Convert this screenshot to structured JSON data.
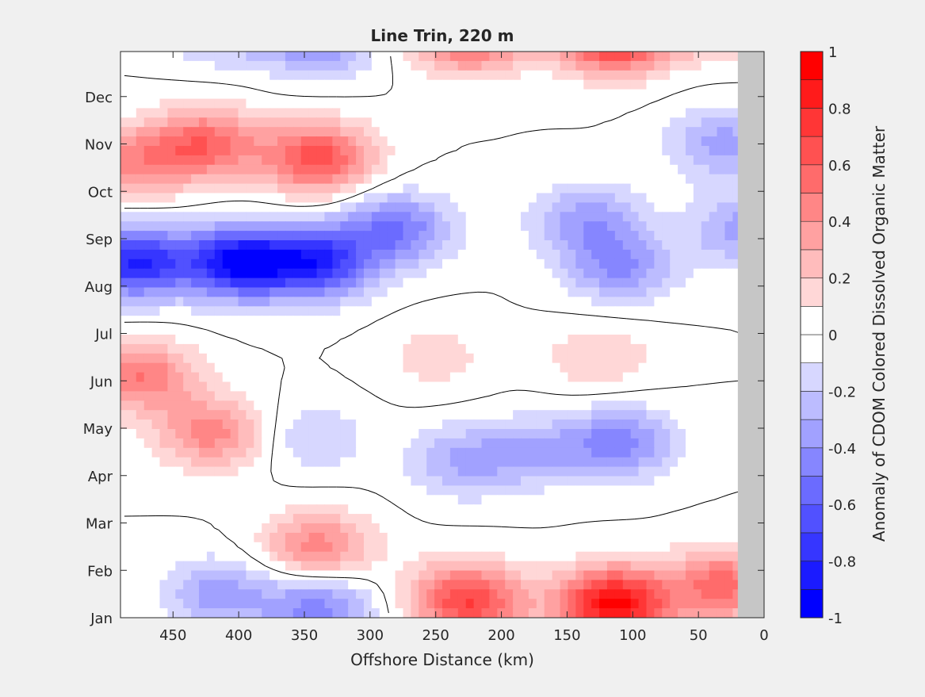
{
  "chart_data": {
    "type": "heatmap",
    "title": "Line Trin, 220 m",
    "xlabel": "Offshore Distance (km)",
    "ylabel": "",
    "xlim": [
      490,
      0
    ],
    "x_reversed": true,
    "x_ticks": [
      450,
      400,
      350,
      300,
      250,
      200,
      150,
      100,
      50,
      0
    ],
    "y_ticks": [
      "Jan",
      "Feb",
      "Mar",
      "Apr",
      "May",
      "Jun",
      "Jul",
      "Aug",
      "Sep",
      "Oct",
      "Nov",
      "Dec"
    ],
    "no_data_region_km": [
      0,
      20
    ],
    "no_data_color": "#c6c6c6",
    "contour_line_level": 0,
    "colorbar": {
      "label": "Anomaly of CDOM Colored Dissolved Organic Matter",
      "clim": [
        -1,
        1
      ],
      "levels": 20,
      "tick_values": [
        1,
        0.8,
        0.6,
        0.4,
        0.2,
        0,
        -0.2,
        -0.4,
        -0.6,
        -0.8,
        -1
      ],
      "tick_labels": [
        "1",
        "0.8",
        "0.6",
        "0.4",
        "0.2",
        "0",
        "-0.2",
        "-0.4",
        "-0.6",
        "-0.8",
        "-1"
      ],
      "colormap": "blue-white-red",
      "color_low": "#0000ff",
      "color_mid": "#ffffff",
      "color_high": "#ff0000"
    },
    "anomaly_features": [
      {
        "km": 400,
        "month": 8.0,
        "value": -0.9
      },
      {
        "km": 480,
        "month": 8.0,
        "value": -0.8
      },
      {
        "km": 340,
        "month": 8.0,
        "value": -0.75
      },
      {
        "km": 280,
        "month": 8.7,
        "value": -0.5
      },
      {
        "km": 110,
        "month": 7.9,
        "value": -0.4
      },
      {
        "km": 135,
        "month": 8.9,
        "value": -0.35
      },
      {
        "km": 15,
        "month": 8.7,
        "value": -0.35
      },
      {
        "km": 30,
        "month": 10.5,
        "value": -0.35
      },
      {
        "km": 340,
        "month": 12.7,
        "value": -0.45
      },
      {
        "km": 415,
        "month": 13.0,
        "value": -0.35
      },
      {
        "km": 110,
        "month": 4.2,
        "value": -0.45
      },
      {
        "km": 230,
        "month": 3.8,
        "value": -0.3
      },
      {
        "km": 345,
        "month": 4.3,
        "value": -0.2
      },
      {
        "km": 175,
        "month": 4.0,
        "value": -0.25
      },
      {
        "km": 340,
        "month": 10.2,
        "value": 0.65
      },
      {
        "km": 425,
        "month": 10.5,
        "value": 0.55
      },
      {
        "km": 480,
        "month": 10.1,
        "value": 0.4
      },
      {
        "km": 475,
        "month": 5.6,
        "value": 0.5
      },
      {
        "km": 420,
        "month": 4.4,
        "value": 0.45
      },
      {
        "km": 110,
        "month": 0.8,
        "value": 0.55
      },
      {
        "km": 30,
        "month": 1.2,
        "value": 0.55
      },
      {
        "km": 340,
        "month": 2.0,
        "value": 0.45
      },
      {
        "km": 230,
        "month": 1.0,
        "value": 0.4
      },
      {
        "km": 120,
        "month": 12.8,
        "value": 0.4
      },
      {
        "km": 220,
        "month": 12.7,
        "value": 0.35
      },
      {
        "km": 125,
        "month": 6.0,
        "value": 0.2
      },
      {
        "km": 250,
        "month": 6.0,
        "value": 0.15
      }
    ]
  }
}
